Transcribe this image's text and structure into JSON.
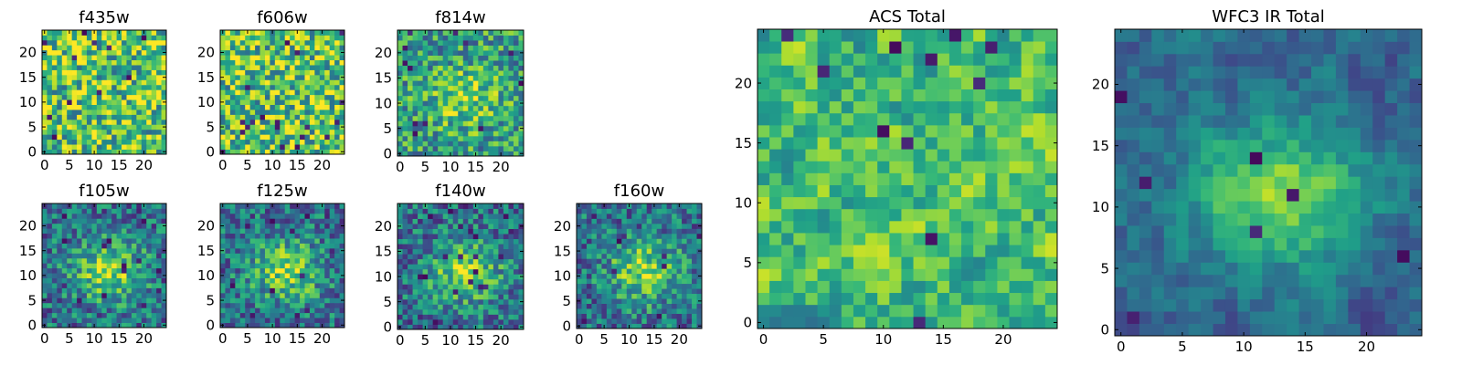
{
  "colormap": "viridis",
  "colors": {
    "min": "#440154",
    "mid": "#21918c",
    "max": "#fde725",
    "axis": "#000000"
  },
  "chart_data": [
    {
      "type": "heatmap",
      "title": "f435w",
      "grid_size": 25,
      "xticks": [
        0,
        5,
        10,
        15,
        20
      ],
      "yticks": [
        0,
        5,
        10,
        15,
        20
      ],
      "xlim": [
        0,
        24
      ],
      "ylim": [
        0,
        24
      ],
      "structure": "noise",
      "seed": 11
    },
    {
      "type": "heatmap",
      "title": "f606w",
      "grid_size": 25,
      "xticks": [
        0,
        5,
        10,
        15,
        20
      ],
      "yticks": [
        0,
        5,
        10,
        15,
        20
      ],
      "xlim": [
        0,
        24
      ],
      "ylim": [
        0,
        24
      ],
      "structure": "noise",
      "seed": 23
    },
    {
      "type": "heatmap",
      "title": "f814w",
      "grid_size": 25,
      "xticks": [
        0,
        5,
        10,
        15,
        20
      ],
      "yticks": [
        0,
        5,
        10,
        15,
        20
      ],
      "xlim": [
        0,
        24
      ],
      "ylim": [
        0,
        24
      ],
      "structure": "noise-with-center",
      "seed": 37
    },
    {
      "type": "heatmap",
      "title": "f105w",
      "grid_size": 25,
      "xticks": [
        0,
        5,
        10,
        15,
        20
      ],
      "yticks": [
        0,
        5,
        10,
        15,
        20
      ],
      "xlim": [
        0,
        24
      ],
      "ylim": [
        0,
        24
      ],
      "structure": "center-blob",
      "seed": 41
    },
    {
      "type": "heatmap",
      "title": "f125w",
      "grid_size": 25,
      "xticks": [
        0,
        5,
        10,
        15,
        20
      ],
      "yticks": [
        0,
        5,
        10,
        15,
        20
      ],
      "xlim": [
        0,
        24
      ],
      "ylim": [
        0,
        24
      ],
      "structure": "center-blob",
      "seed": 53
    },
    {
      "type": "heatmap",
      "title": "f140w",
      "grid_size": 25,
      "xticks": [
        0,
        5,
        10,
        15,
        20
      ],
      "yticks": [
        0,
        5,
        10,
        15,
        20
      ],
      "xlim": [
        0,
        24
      ],
      "ylim": [
        0,
        24
      ],
      "structure": "center-blob",
      "seed": 67
    },
    {
      "type": "heatmap",
      "title": "f160w",
      "grid_size": 25,
      "xticks": [
        0,
        5,
        10,
        15,
        20
      ],
      "yticks": [
        0,
        5,
        10,
        15,
        20
      ],
      "xlim": [
        0,
        24
      ],
      "ylim": [
        0,
        24
      ],
      "structure": "center-blob",
      "seed": 79
    },
    {
      "type": "heatmap",
      "title": "ACS Total",
      "grid_size": 25,
      "xticks": [
        0,
        5,
        10,
        15,
        20
      ],
      "yticks": [
        0,
        5,
        10,
        15,
        20
      ],
      "xlim": [
        0,
        24
      ],
      "ylim": [
        0,
        24
      ],
      "structure": "noise-smooth",
      "seed": 97
    },
    {
      "type": "heatmap",
      "title": "WFC3 IR Total",
      "grid_size": 25,
      "xticks": [
        0,
        5,
        10,
        15,
        20
      ],
      "yticks": [
        0,
        5,
        10,
        15,
        20
      ],
      "xlim": [
        0,
        24
      ],
      "ylim": [
        0,
        24
      ],
      "structure": "smooth-center-blob",
      "seed": 131
    }
  ]
}
